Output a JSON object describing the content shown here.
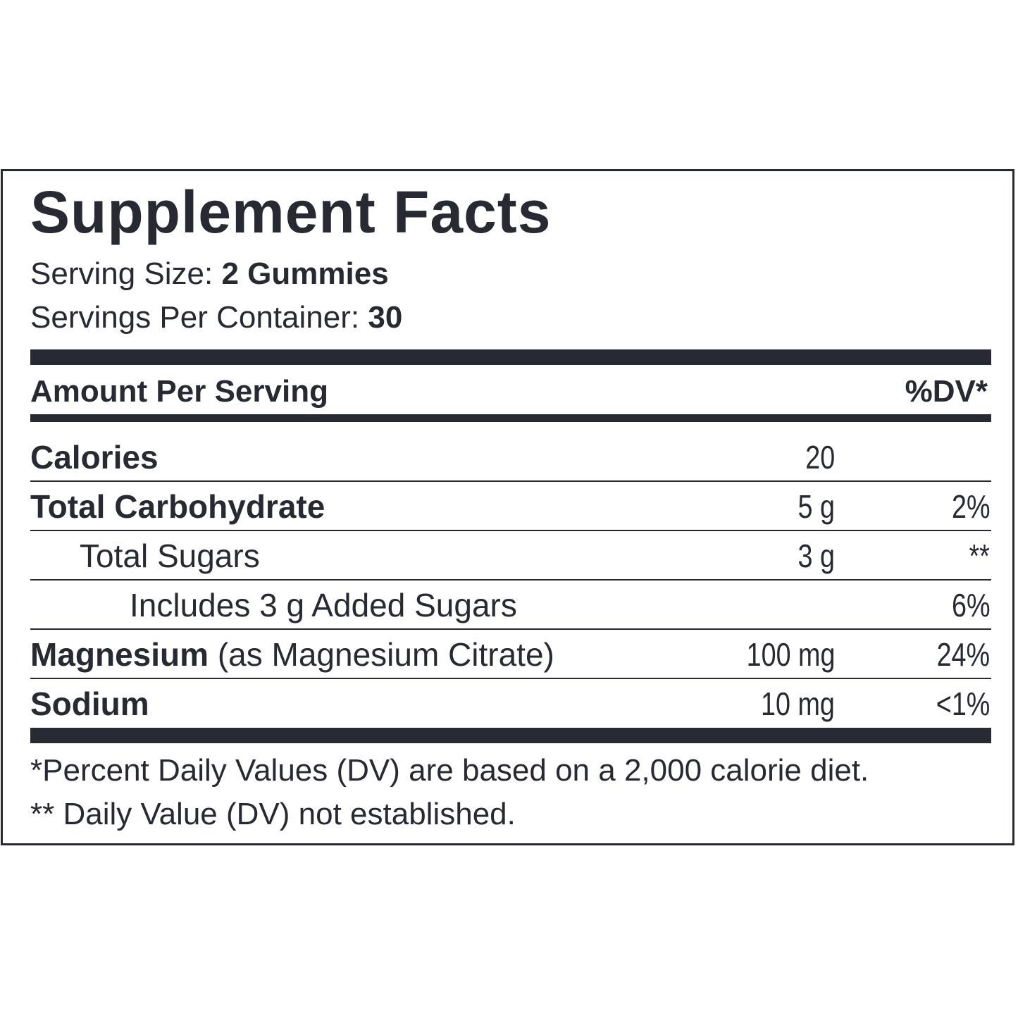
{
  "title": "Supplement Facts",
  "serving_size": {
    "label": "Serving Size:",
    "value": "2 Gummies"
  },
  "servings_per_container": {
    "label": "Servings Per Container:",
    "value": "30"
  },
  "header": {
    "amount_label": "Amount Per Serving",
    "dv_label": "%DV*"
  },
  "rows": [
    {
      "name": "Calories",
      "detail": "",
      "amount": "20",
      "dv": ""
    },
    {
      "name": "Total Carbohydrate",
      "detail": "",
      "amount": "5 g",
      "dv": "2%"
    },
    {
      "name": "Total Sugars",
      "detail": "",
      "amount": "3 g",
      "dv": "**"
    },
    {
      "name": "Includes 3 g Added Sugars",
      "detail": "",
      "amount": "",
      "dv": "6%"
    },
    {
      "name": "Magnesium",
      "detail": "(as Magnesium Citrate)",
      "amount": "100 mg",
      "dv": "24%"
    },
    {
      "name": "Sodium",
      "detail": "",
      "amount": "10 mg",
      "dv": "<1%"
    }
  ],
  "footnotes": [
    "*Percent Daily Values (DV) are based on a 2,000 calorie diet.",
    "** Daily Value (DV) not established."
  ],
  "colors": {
    "ink": "#282a33",
    "background": "#ffffff"
  }
}
